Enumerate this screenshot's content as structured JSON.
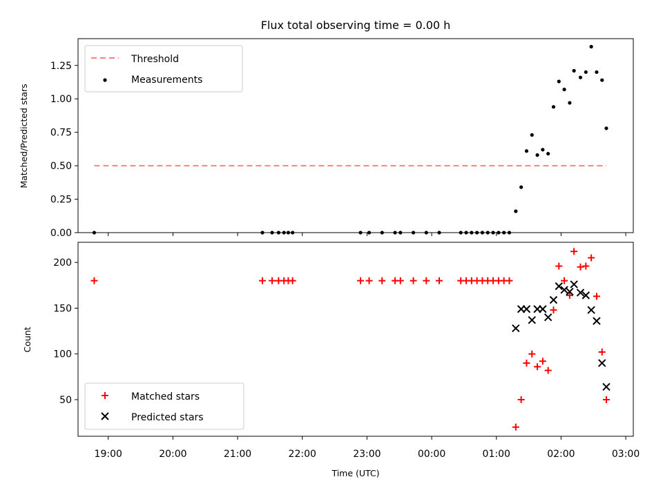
{
  "chart_data": [
    {
      "type": "scatter",
      "title": "Flux total observing time = 0.00 h",
      "xlabel": "",
      "ylabel": "Matched/Predicted stars",
      "xlim": [
        "18:32",
        "03:07"
      ],
      "ylim": [
        0,
        1.45
      ],
      "yticks": [
        "0.00",
        "0.25",
        "0.50",
        "0.75",
        "1.00",
        "1.25"
      ],
      "legend": {
        "placement": "top-left",
        "entries": [
          "Threshold",
          "Measurements"
        ]
      },
      "grid": false,
      "series": [
        {
          "name": "Threshold",
          "kind": "dashed-line",
          "color": "#ff7f7f",
          "points": [
            [
              "18:47",
              0.5
            ],
            [
              "02:42",
              0.5
            ]
          ]
        },
        {
          "name": "Measurements",
          "kind": "dot",
          "color": "#000000",
          "points": [
            [
              "18:47",
              0.0
            ],
            [
              "21:23",
              0.0
            ],
            [
              "21:32",
              0.0
            ],
            [
              "21:38",
              0.0
            ],
            [
              "21:43",
              0.0
            ],
            [
              "21:47",
              0.0
            ],
            [
              "21:51",
              0.0
            ],
            [
              "22:54",
              0.0
            ],
            [
              "23:02",
              0.0
            ],
            [
              "23:14",
              0.0
            ],
            [
              "23:26",
              0.0
            ],
            [
              "23:31",
              0.0
            ],
            [
              "23:43",
              0.0
            ],
            [
              "23:55",
              0.0
            ],
            [
              "00:07",
              0.0
            ],
            [
              "00:27",
              0.0
            ],
            [
              "00:32",
              0.0
            ],
            [
              "00:37",
              0.0
            ],
            [
              "00:42",
              0.0
            ],
            [
              "00:47",
              0.0
            ],
            [
              "00:52",
              0.0
            ],
            [
              "00:57",
              0.0
            ],
            [
              "01:02",
              0.0
            ],
            [
              "01:07",
              0.0
            ],
            [
              "01:12",
              0.0
            ],
            [
              "01:18",
              0.16
            ],
            [
              "01:23",
              0.34
            ],
            [
              "01:28",
              0.61
            ],
            [
              "01:33",
              0.73
            ],
            [
              "01:38",
              0.58
            ],
            [
              "01:43",
              0.62
            ],
            [
              "01:48",
              0.59
            ],
            [
              "01:53",
              0.94
            ],
            [
              "01:58",
              1.13
            ],
            [
              "02:03",
              1.07
            ],
            [
              "02:08",
              0.97
            ],
            [
              "02:12",
              1.21
            ],
            [
              "02:18",
              1.16
            ],
            [
              "02:23",
              1.2
            ],
            [
              "02:28",
              1.39
            ],
            [
              "02:33",
              1.2
            ],
            [
              "02:38",
              1.14
            ],
            [
              "02:42",
              0.78
            ]
          ]
        }
      ]
    },
    {
      "type": "scatter",
      "title": "",
      "xlabel": "Time (UTC)",
      "ylabel": "Count",
      "xlim": [
        "18:32",
        "03:07"
      ],
      "ylim": [
        10,
        222
      ],
      "yticks": [
        "50",
        "100",
        "150",
        "200"
      ],
      "xticks": [
        "19:00",
        "20:00",
        "21:00",
        "22:00",
        "23:00",
        "00:00",
        "01:00",
        "02:00",
        "03:00"
      ],
      "legend": {
        "placement": "bottom-left",
        "entries": [
          "Matched stars",
          "Predicted stars"
        ]
      },
      "grid": false,
      "series": [
        {
          "name": "Matched stars",
          "kind": "plus",
          "color": "#ff0000",
          "points": [
            [
              "18:47",
              180
            ],
            [
              "21:23",
              180
            ],
            [
              "21:32",
              180
            ],
            [
              "21:38",
              180
            ],
            [
              "21:43",
              180
            ],
            [
              "21:47",
              180
            ],
            [
              "21:51",
              180
            ],
            [
              "22:54",
              180
            ],
            [
              "23:02",
              180
            ],
            [
              "23:14",
              180
            ],
            [
              "23:26",
              180
            ],
            [
              "23:31",
              180
            ],
            [
              "23:43",
              180
            ],
            [
              "23:55",
              180
            ],
            [
              "00:07",
              180
            ],
            [
              "00:27",
              180
            ],
            [
              "00:32",
              180
            ],
            [
              "00:37",
              180
            ],
            [
              "00:42",
              180
            ],
            [
              "00:47",
              180
            ],
            [
              "00:52",
              180
            ],
            [
              "00:57",
              180
            ],
            [
              "01:02",
              180
            ],
            [
              "01:07",
              180
            ],
            [
              "01:12",
              180
            ],
            [
              "01:18",
              20
            ],
            [
              "01:23",
              50
            ],
            [
              "01:28",
              90
            ],
            [
              "01:33",
              100
            ],
            [
              "01:38",
              86
            ],
            [
              "01:43",
              92
            ],
            [
              "01:48",
              82
            ],
            [
              "01:53",
              148
            ],
            [
              "01:58",
              196
            ],
            [
              "02:03",
              180
            ],
            [
              "02:08",
              164
            ],
            [
              "02:12",
              212
            ],
            [
              "02:18",
              195
            ],
            [
              "02:23",
              196
            ],
            [
              "02:28",
              205
            ],
            [
              "02:33",
              163
            ],
            [
              "02:38",
              102
            ],
            [
              "02:42",
              50
            ]
          ]
        },
        {
          "name": "Predicted stars",
          "kind": "x",
          "color": "#000000",
          "points": [
            [
              "01:18",
              128
            ],
            [
              "01:23",
              149
            ],
            [
              "01:28",
              149
            ],
            [
              "01:33",
              137
            ],
            [
              "01:38",
              149
            ],
            [
              "01:43",
              149
            ],
            [
              "01:48",
              140
            ],
            [
              "01:53",
              159
            ],
            [
              "01:58",
              174
            ],
            [
              "02:03",
              170
            ],
            [
              "02:08",
              168
            ],
            [
              "02:12",
              176
            ],
            [
              "02:18",
              167
            ],
            [
              "02:23",
              164
            ],
            [
              "02:28",
              148
            ],
            [
              "02:33",
              136
            ],
            [
              "02:38",
              90
            ],
            [
              "02:42",
              64
            ]
          ]
        }
      ]
    }
  ]
}
